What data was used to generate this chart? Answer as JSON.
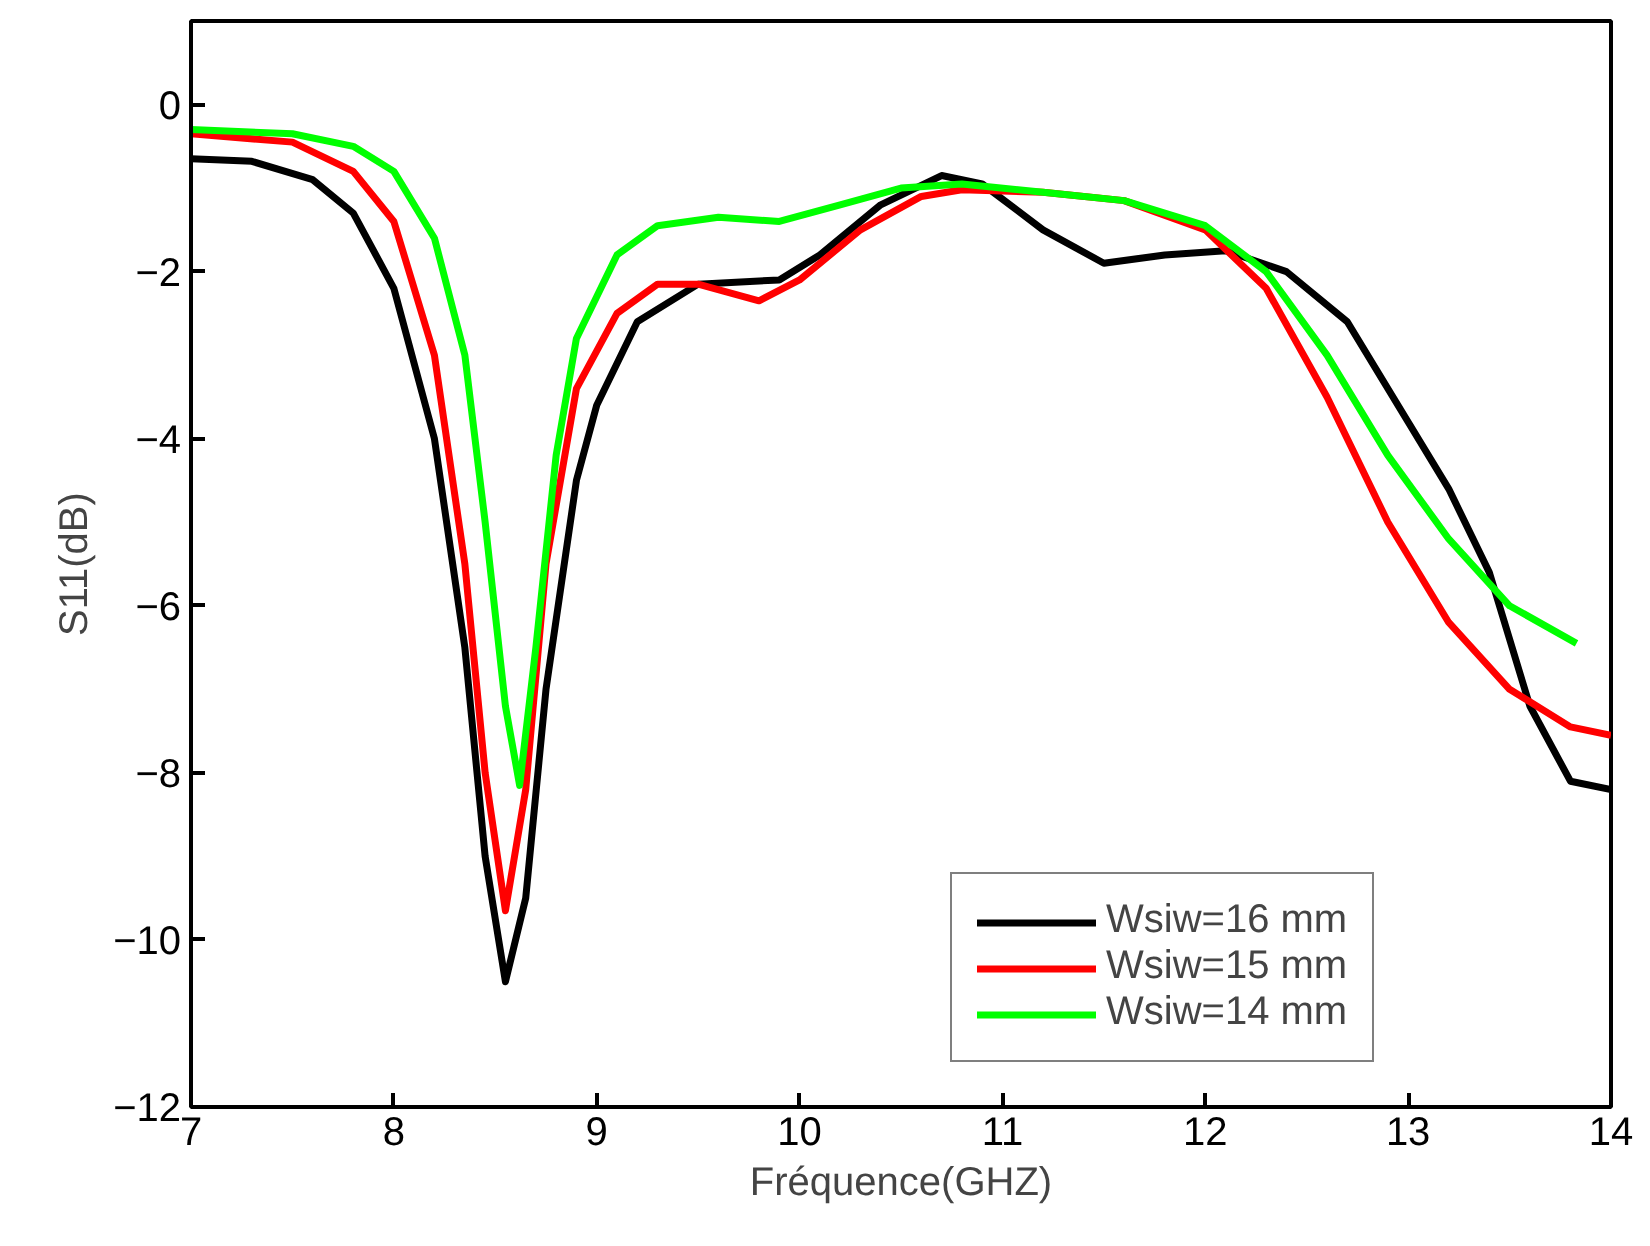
{
  "chart_data": {
    "type": "line",
    "xlabel": "Fréquence(GHZ)",
    "ylabel": "S11(dB)",
    "xlim": [
      7,
      14
    ],
    "ylim": [
      -12,
      1
    ],
    "xticks": [
      7,
      8,
      9,
      10,
      11,
      12,
      13,
      14
    ],
    "yticks": [
      -12,
      -10,
      -8,
      -6,
      -4,
      -2,
      0
    ],
    "grid": false,
    "legend": "bottom right",
    "line_style": "solid",
    "marker": "none",
    "series": [
      {
        "name": "Wsiw=16 mm",
        "color": "#000000",
        "x": [
          7,
          7.3,
          7.6,
          7.8,
          8.0,
          8.2,
          8.35,
          8.45,
          8.55,
          8.65,
          8.75,
          8.9,
          9.0,
          9.2,
          9.5,
          9.9,
          10.1,
          10.4,
          10.7,
          10.9,
          11.2,
          11.5,
          11.8,
          12.1,
          12.4,
          12.7,
          13.0,
          13.2,
          13.4,
          13.6,
          13.8,
          14.0
        ],
        "values": [
          -0.65,
          -0.68,
          -0.9,
          -1.3,
          -2.2,
          -4.0,
          -6.5,
          -9.0,
          -10.5,
          -9.5,
          -7.0,
          -4.5,
          -3.6,
          -2.6,
          -2.15,
          -2.1,
          -1.8,
          -1.2,
          -0.85,
          -0.95,
          -1.5,
          -1.9,
          -1.8,
          -1.75,
          -2.0,
          -2.6,
          -3.8,
          -4.6,
          -5.6,
          -7.2,
          -8.1,
          -8.2
        ]
      },
      {
        "name": "Wsiw=15 mm",
        "color": "#ff0000",
        "x": [
          7,
          7.5,
          7.8,
          8.0,
          8.2,
          8.35,
          8.45,
          8.55,
          8.65,
          8.75,
          8.9,
          9.1,
          9.3,
          9.5,
          9.8,
          10.0,
          10.3,
          10.6,
          10.8,
          11.2,
          11.6,
          12.0,
          12.3,
          12.6,
          12.9,
          13.2,
          13.5,
          13.8,
          14.0
        ],
        "values": [
          -0.35,
          -0.45,
          -0.8,
          -1.4,
          -3.0,
          -5.5,
          -8.0,
          -9.65,
          -8.2,
          -5.5,
          -3.4,
          -2.5,
          -2.15,
          -2.15,
          -2.35,
          -2.1,
          -1.5,
          -1.1,
          -1.02,
          -1.05,
          -1.15,
          -1.5,
          -2.2,
          -3.5,
          -5.0,
          -6.2,
          -7.0,
          -7.45,
          -7.55
        ]
      },
      {
        "name": "Wsiw=14 mm",
        "color": "#00ff00",
        "x": [
          7,
          7.5,
          7.8,
          8.0,
          8.2,
          8.35,
          8.45,
          8.55,
          8.62,
          8.7,
          8.8,
          8.9,
          9.1,
          9.3,
          9.6,
          9.9,
          10.2,
          10.5,
          10.8,
          11.2,
          11.6,
          12.0,
          12.3,
          12.6,
          12.9,
          13.2,
          13.5,
          13.83
        ],
        "values": [
          -0.3,
          -0.35,
          -0.5,
          -0.8,
          -1.6,
          -3.0,
          -5.0,
          -7.2,
          -8.15,
          -6.5,
          -4.2,
          -2.8,
          -1.8,
          -1.45,
          -1.35,
          -1.4,
          -1.2,
          -1.0,
          -0.95,
          -1.05,
          -1.15,
          -1.45,
          -2.0,
          -3.0,
          -4.2,
          -5.2,
          -6.0,
          -6.45
        ]
      }
    ]
  }
}
